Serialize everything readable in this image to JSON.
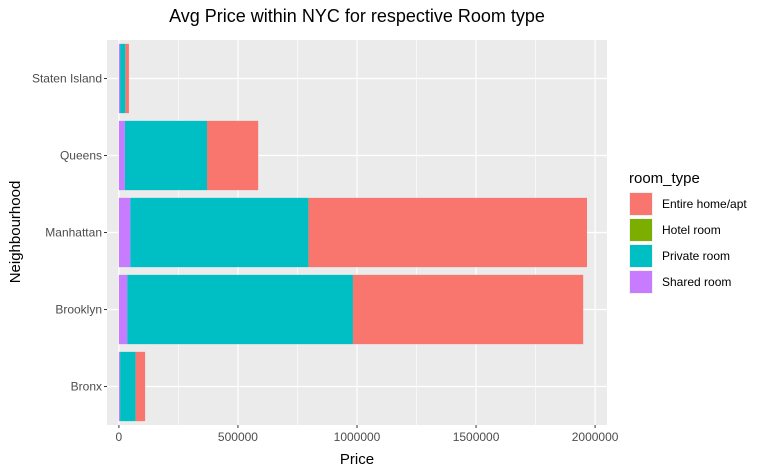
{
  "chart_data": {
    "type": "bar",
    "orientation": "horizontal",
    "stacked": true,
    "title": "Avg Price within NYC for respective Room type",
    "xlabel": "Price",
    "ylabel": "Neighbourhood",
    "xlim": [
      -50000,
      2050000
    ],
    "x_ticks": [
      0,
      500000,
      1000000,
      1500000,
      2000000
    ],
    "x_tick_labels": [
      "0",
      "500000",
      "1000000",
      "1500000",
      "2000000"
    ],
    "categories": [
      "Bronx",
      "Brooklyn",
      "Manhattan",
      "Queens",
      "Staten Island"
    ],
    "legend": {
      "title": "room_type",
      "position": "right"
    },
    "grid": true,
    "series": [
      {
        "name": "Shared room",
        "color": "#C77CFF",
        "values": [
          5000,
          35000,
          48000,
          25000,
          5000
        ]
      },
      {
        "name": "Private room",
        "color": "#00BFC4",
        "values": [
          65000,
          948000,
          748000,
          345000,
          22000
        ]
      },
      {
        "name": "Hotel room",
        "color": "#7CAE00",
        "values": [
          0,
          0,
          0,
          0,
          0
        ]
      },
      {
        "name": "Entire home/apt",
        "color": "#F8766D",
        "values": [
          40000,
          967000,
          1170000,
          215000,
          15000
        ]
      }
    ],
    "legend_order": [
      "Entire home/apt",
      "Hotel room",
      "Private room",
      "Shared room"
    ]
  }
}
